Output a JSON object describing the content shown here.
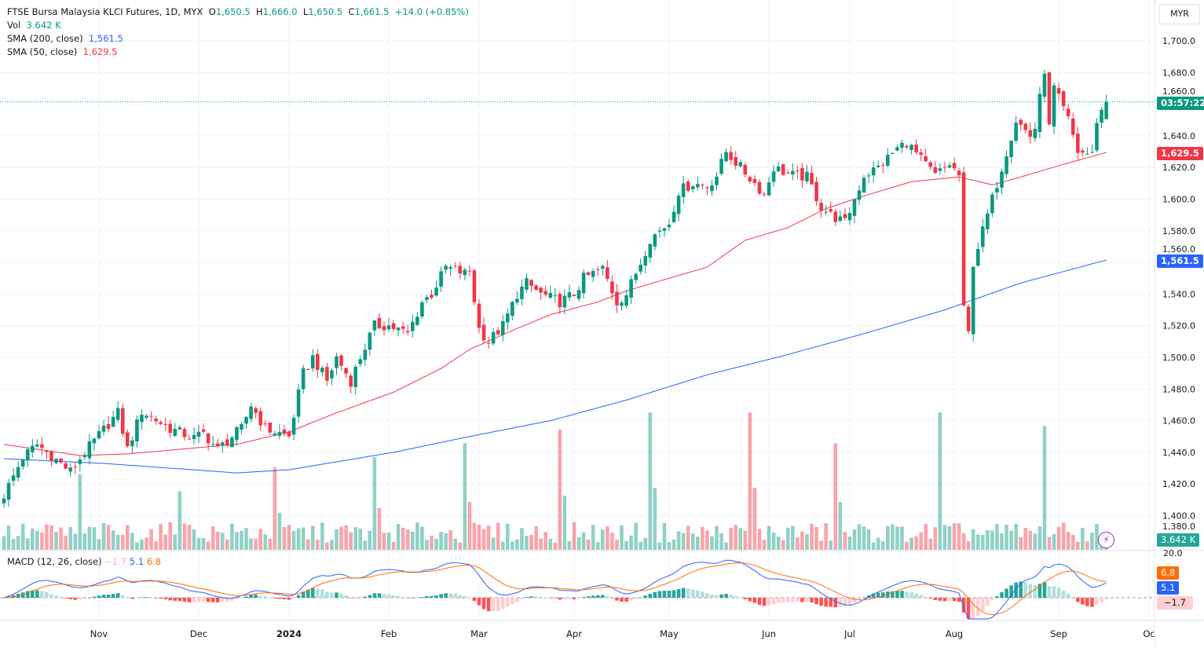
{
  "legend": {
    "symbol": "FTSE Bursa Malaysia KLCI Futures, 1D, MYX",
    "o_label": "O",
    "o_val": "1,650.5",
    "h_label": "H",
    "h_val": "1,666.0",
    "l_label": "L",
    "l_val": "1,650.5",
    "c_label": "C",
    "c_val": "1,661.5",
    "change": "+14.0 (+0.85%)",
    "vol_label": "Vol",
    "vol_val": "3.642 K",
    "sma200_label": "SMA (200, close)",
    "sma200_val": "1,561.5",
    "sma50_label": "SMA (50, close)",
    "sma50_val": "1,629.5",
    "macd_label": "MACD (12, 26, close)",
    "macd_hist": "−1.7",
    "macd_val": "5.1",
    "macd_signal": "6.8"
  },
  "currency_button": "MYR",
  "badges": {
    "countdown": "03:57:22",
    "sma50": "1,629.5",
    "sma200": "1,561.5",
    "volume": "3.642 K",
    "macd_signal": "6.8",
    "macd": "5.1",
    "macd_hist": "−1.7",
    "macd_axis_top": "20.0",
    "hidden_axis": "1,380.0"
  },
  "colors": {
    "up": "#089981",
    "down": "#f23645",
    "sma200": "#2962ff",
    "sma50": "#f23645",
    "macd": "#2962ff",
    "signal": "#ff6d00"
  },
  "chart_data": {
    "type": "candlestick",
    "title": "FTSE Bursa Malaysia KLCI Futures, 1D, MYX",
    "ylim": [
      1380,
      1710
    ],
    "y_ticks": [
      "1,700.0",
      "1,680.0",
      "1,660.0",
      "1,640.0",
      "1,620.0",
      "1,600.0",
      "1,580.0",
      "1,560.0",
      "1,540.0",
      "1,520.0",
      "1,500.0",
      "1,480.0",
      "1,460.0",
      "1,440.0",
      "1,420.0",
      "1,400.0"
    ],
    "y_tick_values": [
      1700,
      1680,
      1660,
      1640,
      1620,
      1600,
      1580,
      1560,
      1540,
      1520,
      1500,
      1480,
      1460,
      1440,
      1420,
      1400
    ],
    "x_ticks": [
      {
        "label": "Nov",
        "day": 20,
        "bold": false
      },
      {
        "label": "Dec",
        "day": 41,
        "bold": false
      },
      {
        "label": "2024",
        "day": 60,
        "bold": true
      },
      {
        "label": "Feb",
        "day": 81,
        "bold": false
      },
      {
        "label": "Mar",
        "day": 100,
        "bold": false
      },
      {
        "label": "Apr",
        "day": 120,
        "bold": false
      },
      {
        "label": "May",
        "day": 140,
        "bold": false
      },
      {
        "label": "Jun",
        "day": 161,
        "bold": false
      },
      {
        "label": "Jul",
        "day": 178,
        "bold": false
      },
      {
        "label": "Aug",
        "day": 200,
        "bold": false
      },
      {
        "label": "Sep",
        "day": 222,
        "bold": false
      },
      {
        "label": "Oc",
        "day": 241,
        "bold": false
      }
    ],
    "total_days": 233,
    "approx_close_keypoints": [
      [
        0,
        1413
      ],
      [
        4,
        1437
      ],
      [
        7,
        1445
      ],
      [
        14,
        1428
      ],
      [
        17,
        1440
      ],
      [
        22,
        1458
      ],
      [
        24,
        1465
      ],
      [
        26,
        1442
      ],
      [
        29,
        1466
      ],
      [
        35,
        1455
      ],
      [
        40,
        1449
      ],
      [
        42,
        1452
      ],
      [
        45,
        1442
      ],
      [
        50,
        1455
      ],
      [
        52,
        1470
      ],
      [
        55,
        1455
      ],
      [
        60,
        1450
      ],
      [
        63,
        1490
      ],
      [
        65,
        1500
      ],
      [
        68,
        1485
      ],
      [
        70,
        1500
      ],
      [
        73,
        1485
      ],
      [
        75,
        1500
      ],
      [
        78,
        1520
      ],
      [
        81,
        1520
      ],
      [
        85,
        1515
      ],
      [
        88,
        1535
      ],
      [
        90,
        1540
      ],
      [
        93,
        1557
      ],
      [
        97,
        1553
      ],
      [
        98,
        1555
      ],
      [
        100,
        1518
      ],
      [
        102,
        1510
      ],
      [
        105,
        1520
      ],
      [
        108,
        1540
      ],
      [
        110,
        1547
      ],
      [
        113,
        1540
      ],
      [
        117,
        1535
      ],
      [
        120,
        1540
      ],
      [
        122,
        1550
      ],
      [
        126,
        1556
      ],
      [
        129,
        1535
      ],
      [
        131,
        1540
      ],
      [
        134,
        1560
      ],
      [
        136,
        1575
      ],
      [
        140,
        1585
      ],
      [
        142,
        1605
      ],
      [
        145,
        1610
      ],
      [
        148,
        1608
      ],
      [
        150,
        1615
      ],
      [
        152,
        1630
      ],
      [
        155,
        1620
      ],
      [
        158,
        1610
      ],
      [
        160,
        1603
      ],
      [
        162,
        1620
      ],
      [
        166,
        1615
      ],
      [
        169,
        1614
      ],
      [
        172,
        1595
      ],
      [
        174,
        1590
      ],
      [
        177,
        1585
      ],
      [
        179,
        1600
      ],
      [
        181,
        1615
      ],
      [
        184,
        1620
      ],
      [
        188,
        1632
      ],
      [
        190,
        1636
      ],
      [
        193,
        1625
      ],
      [
        196,
        1615
      ],
      [
        199,
        1622
      ],
      [
        201,
        1615
      ],
      [
        202,
        1530
      ],
      [
        203,
        1515
      ],
      [
        204,
        1560
      ],
      [
        207,
        1590
      ],
      [
        209,
        1610
      ],
      [
        212,
        1640
      ],
      [
        213,
        1650
      ],
      [
        216,
        1640
      ],
      [
        217,
        1645
      ],
      [
        219,
        1682
      ],
      [
        220,
        1645
      ],
      [
        221,
        1670
      ],
      [
        224,
        1650
      ],
      [
        226,
        1630
      ],
      [
        229,
        1628
      ],
      [
        230,
        1650
      ],
      [
        232,
        1661.5
      ]
    ],
    "last_candle": {
      "open": 1650.5,
      "high": 1666.0,
      "low": 1650.5,
      "close": 1661.5
    },
    "sma200_keypoints": [
      [
        0,
        1436
      ],
      [
        21,
        1433
      ],
      [
        49,
        1427
      ],
      [
        60,
        1429
      ],
      [
        82,
        1440
      ],
      [
        98,
        1450
      ],
      [
        115,
        1460
      ],
      [
        131,
        1473
      ],
      [
        148,
        1489
      ],
      [
        164,
        1501
      ],
      [
        181,
        1515
      ],
      [
        198,
        1530
      ],
      [
        214,
        1547
      ],
      [
        232,
        1561.5
      ]
    ],
    "sma50_keypoints": [
      [
        0,
        1445
      ],
      [
        16,
        1438
      ],
      [
        26,
        1439
      ],
      [
        41,
        1443
      ],
      [
        49,
        1445
      ],
      [
        60,
        1453
      ],
      [
        70,
        1465
      ],
      [
        82,
        1478
      ],
      [
        92,
        1493
      ],
      [
        98,
        1505
      ],
      [
        107,
        1517
      ],
      [
        115,
        1527
      ],
      [
        125,
        1535
      ],
      [
        131,
        1542
      ],
      [
        140,
        1550
      ],
      [
        148,
        1557
      ],
      [
        156,
        1574
      ],
      [
        165,
        1582
      ],
      [
        173,
        1594
      ],
      [
        181,
        1602
      ],
      [
        191,
        1611
      ],
      [
        201,
        1614
      ],
      [
        208,
        1609
      ],
      [
        214,
        1614
      ],
      [
        223,
        1622
      ],
      [
        232,
        1629.5
      ]
    ],
    "volume_k": {
      "typical_range": [
        2,
        8
      ],
      "last": 3.642,
      "spike_days": [
        [
          16,
          22
        ],
        [
          37,
          17
        ],
        [
          57,
          24
        ],
        [
          78,
          27
        ],
        [
          97,
          31
        ],
        [
          117,
          35
        ],
        [
          136,
          40
        ],
        [
          157,
          40
        ],
        [
          175,
          31
        ],
        [
          197,
          40
        ],
        [
          219,
          36
        ]
      ]
    },
    "macd": {
      "fast": 12,
      "slow": 26,
      "signal": 9,
      "last_macd": 5.1,
      "last_signal": 6.8,
      "last_hist": -1.7
    }
  }
}
